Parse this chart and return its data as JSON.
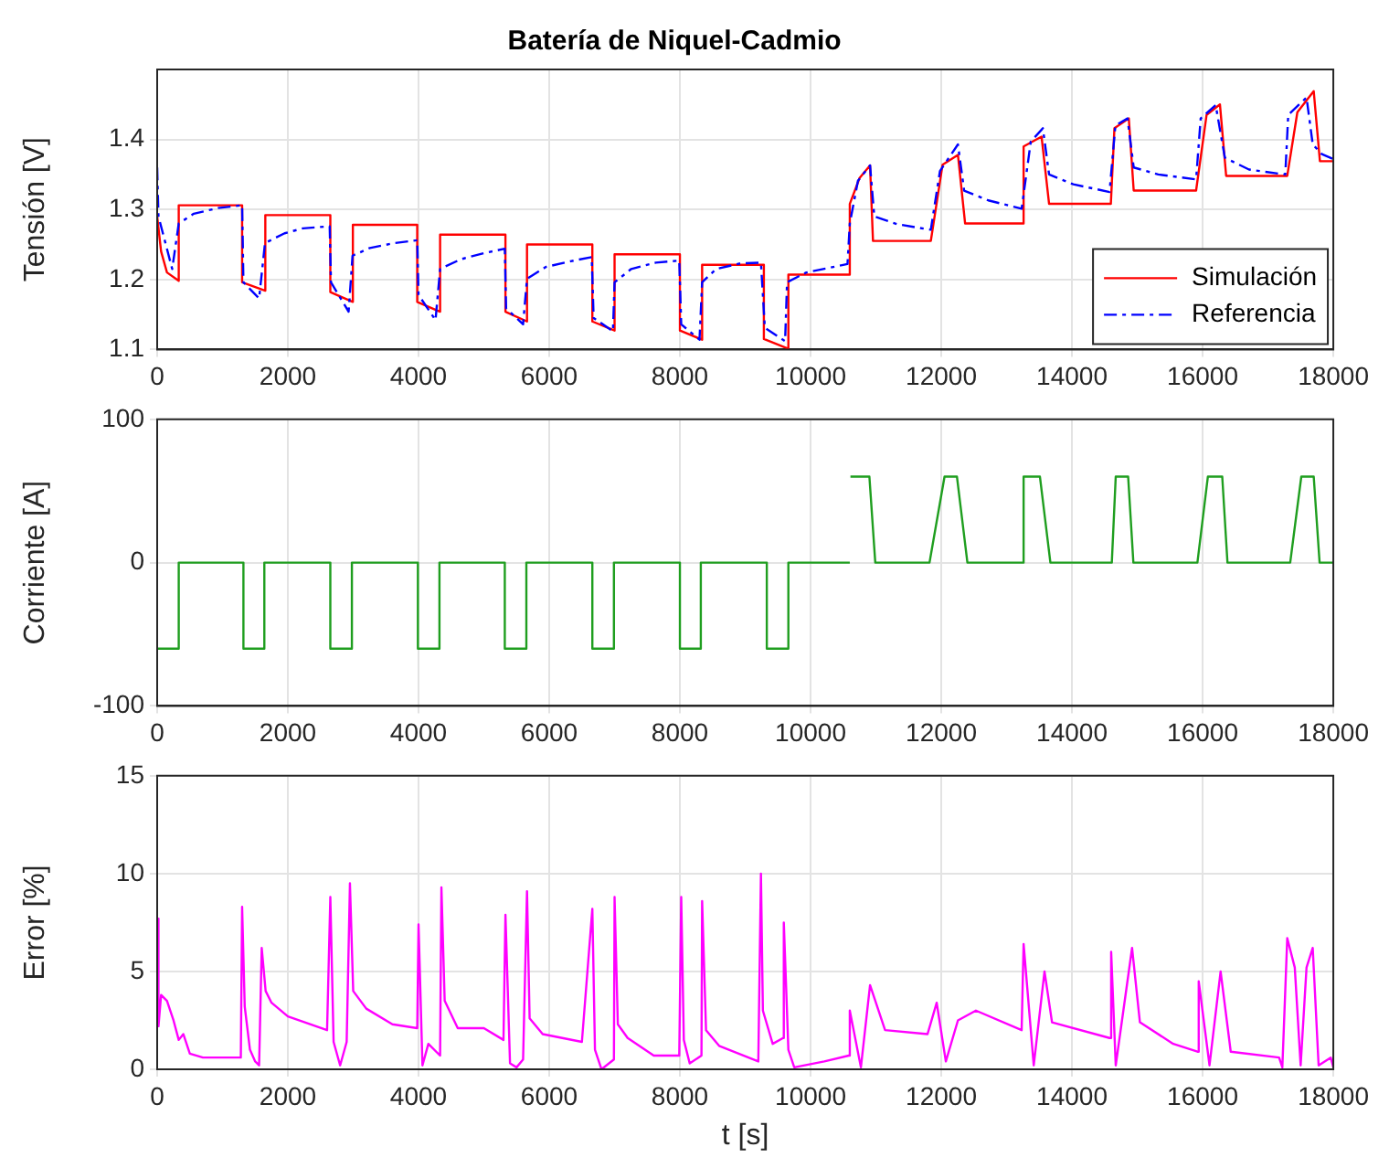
{
  "chart_data": [
    {
      "type": "line",
      "title": "Batería de Niquel-Cadmio",
      "ylabel": "Tensión [V]",
      "xlim": [
        0,
        18000
      ],
      "xticks": [
        0,
        2000,
        4000,
        6000,
        8000,
        10000,
        12000,
        14000,
        16000,
        18000
      ],
      "ylim": [
        1.1,
        1.5
      ],
      "yticks": [
        1.1,
        1.2,
        1.3,
        1.4
      ],
      "grid": true,
      "legend": "bottom right",
      "marker": "none",
      "series": [
        {
          "name": "Simulación",
          "color": "#ff0000",
          "line_style": "solid",
          "x": [
            0,
            60,
            150,
            330,
            330,
            1300,
            1300,
            1655,
            1655,
            2650,
            2650,
            2995,
            2995,
            3980,
            3980,
            4330,
            4330,
            5330,
            5330,
            5660,
            5660,
            6660,
            6660,
            7000,
            7000,
            8000,
            8000,
            8340,
            8340,
            9285,
            9285,
            9660,
            9660,
            10585,
            10600,
            10750,
            10910,
            10955,
            11840,
            12020,
            12255,
            12365,
            13260,
            13260,
            13535,
            13650,
            14595,
            14650,
            14870,
            14945,
            15900,
            16060,
            16265,
            16360,
            17295,
            17450,
            17700,
            17795,
            18000
          ],
          "values": [
            1.29,
            1.24,
            1.21,
            1.198,
            1.306,
            1.306,
            1.196,
            1.184,
            1.292,
            1.292,
            1.182,
            1.168,
            1.278,
            1.278,
            1.168,
            1.154,
            1.264,
            1.264,
            1.154,
            1.14,
            1.25,
            1.25,
            1.14,
            1.127,
            1.236,
            1.236,
            1.127,
            1.114,
            1.221,
            1.221,
            1.115,
            1.101,
            1.207,
            1.207,
            1.308,
            1.345,
            1.363,
            1.255,
            1.255,
            1.364,
            1.378,
            1.28,
            1.28,
            1.39,
            1.404,
            1.308,
            1.308,
            1.416,
            1.43,
            1.327,
            1.327,
            1.435,
            1.45,
            1.348,
            1.348,
            1.439,
            1.469,
            1.369,
            1.369
          ]
        },
        {
          "name": "Referencia",
          "color": "#0000ff",
          "line_style": "dashed",
          "x": [
            0,
            20,
            230,
            330,
            560,
            930,
            1300,
            1320,
            1560,
            1650,
            1950,
            2230,
            2640,
            2660,
            2930,
            2990,
            3255,
            3630,
            3980,
            4000,
            4260,
            4330,
            4650,
            5020,
            5320,
            5340,
            5600,
            5660,
            5950,
            6325,
            6650,
            6680,
            6975,
            7000,
            7255,
            7630,
            7990,
            8020,
            8300,
            8340,
            8555,
            8930,
            9240,
            9300,
            9610,
            9640,
            9935,
            10300,
            10565,
            10600,
            10725,
            10910,
            10975,
            11325,
            11840,
            11980,
            12255,
            12350,
            12720,
            13230,
            13370,
            13555,
            13650,
            14020,
            14575,
            14665,
            14850,
            14945,
            15320,
            15900,
            15970,
            16200,
            16340,
            16710,
            17265,
            17310,
            17590,
            17685,
            17825,
            18000
          ],
          "values": [
            1.36,
            1.29,
            1.215,
            1.28,
            1.294,
            1.302,
            1.306,
            1.196,
            1.173,
            1.252,
            1.266,
            1.273,
            1.276,
            1.196,
            1.154,
            1.234,
            1.245,
            1.252,
            1.256,
            1.178,
            1.142,
            1.215,
            1.229,
            1.238,
            1.244,
            1.159,
            1.136,
            1.201,
            1.218,
            1.226,
            1.232,
            1.145,
            1.126,
            1.196,
            1.215,
            1.224,
            1.227,
            1.136,
            1.114,
            1.196,
            1.215,
            1.223,
            1.224,
            1.131,
            1.112,
            1.196,
            1.21,
            1.217,
            1.222,
            1.28,
            1.341,
            1.363,
            1.29,
            1.279,
            1.271,
            1.355,
            1.393,
            1.327,
            1.313,
            1.301,
            1.397,
            1.416,
            1.35,
            1.336,
            1.325,
            1.42,
            1.43,
            1.36,
            1.35,
            1.343,
            1.43,
            1.449,
            1.374,
            1.357,
            1.35,
            1.435,
            1.46,
            1.393,
            1.379,
            1.372
          ]
        }
      ]
    },
    {
      "type": "line",
      "ylabel": "Corriente [A]",
      "xlim": [
        0,
        18000
      ],
      "xticks": [
        0,
        2000,
        4000,
        6000,
        8000,
        10000,
        12000,
        14000,
        16000,
        18000
      ],
      "ylim": [
        -100,
        100
      ],
      "yticks": [
        -100,
        0,
        100
      ],
      "grid": true,
      "marker": "none",
      "series": [
        {
          "color": "#1f9e1f",
          "line_style": "solid",
          "x": [
            0,
            330,
            330,
            1320,
            1320,
            1640,
            1640,
            2650,
            2650,
            2980,
            2980,
            3990,
            3990,
            4320,
            4320,
            5320,
            5320,
            5650,
            5650,
            6660,
            6660,
            6990,
            6990,
            8000,
            8000,
            8320,
            8320,
            9330,
            9330,
            9660,
            9660,
            10600,
            10605,
            10610,
            10900,
            10990,
            11820,
            12050,
            12240,
            12400,
            13260,
            13260,
            13510,
            13670,
            14610,
            14670,
            14860,
            14940,
            15920,
            16080,
            16300,
            16380,
            17340,
            17510,
            17700,
            17790,
            18000
          ],
          "values": [
            -60,
            -60,
            0,
            0,
            -60,
            -60,
            0,
            0,
            -60,
            -60,
            0,
            0,
            -60,
            -60,
            0,
            0,
            -60,
            -60,
            0,
            0,
            -60,
            -60,
            0,
            0,
            -60,
            -60,
            0,
            0,
            -60,
            -60,
            0,
            0,
            null,
            60,
            60,
            0,
            0,
            60,
            60,
            0,
            0,
            60,
            60,
            0,
            0,
            60,
            60,
            0,
            0,
            60,
            60,
            0,
            0,
            60,
            60,
            0,
            0
          ]
        }
      ]
    },
    {
      "type": "line",
      "xlabel": "t [s]",
      "ylabel": "Error [%]",
      "xlim": [
        0,
        18000
      ],
      "xticks": [
        0,
        2000,
        4000,
        6000,
        8000,
        10000,
        12000,
        14000,
        16000,
        18000
      ],
      "ylim": [
        0,
        15
      ],
      "yticks": [
        0,
        5,
        10,
        15
      ],
      "grid": true,
      "marker": "none",
      "series": [
        {
          "color": "#ff00ff",
          "line_style": "solid",
          "x": [
            0,
            20,
            60,
            150,
            250,
            330,
            400,
            500,
            700,
            1000,
            1280,
            1300,
            1340,
            1420,
            1500,
            1560,
            1600,
            1660,
            1750,
            2000,
            2600,
            2650,
            2700,
            2800,
            2900,
            2950,
            3000,
            3200,
            3600,
            3980,
            4000,
            4060,
            4150,
            4330,
            4350,
            4400,
            4600,
            5000,
            5300,
            5330,
            5400,
            5500,
            5600,
            5660,
            5700,
            5900,
            6500,
            6660,
            6700,
            6800,
            6990,
            7000,
            7050,
            7200,
            7600,
            7990,
            8020,
            8060,
            8150,
            8330,
            8340,
            8400,
            8600,
            9200,
            9240,
            9270,
            9420,
            9580,
            9590,
            9660,
            9750,
            10210,
            10585,
            10600,
            10770,
            10910,
            11140,
            11790,
            11930,
            12070,
            12255,
            12530,
            13230,
            13260,
            13415,
            13580,
            13695,
            14575,
            14600,
            14670,
            14920,
            15040,
            15550,
            15920,
            15940,
            16105,
            16275,
            16430,
            17170,
            17220,
            17295,
            17410,
            17500,
            17590,
            17685,
            17775,
            17960,
            18000
          ],
          "values": [
            7.7,
            2.2,
            3.8,
            3.5,
            2.5,
            1.5,
            1.8,
            0.8,
            0.6,
            0.6,
            0.6,
            8.3,
            3.2,
            1.0,
            0.4,
            0.2,
            6.2,
            4.0,
            3.4,
            2.7,
            2.0,
            8.8,
            1.4,
            0.2,
            1.4,
            9.5,
            4.0,
            3.1,
            2.3,
            2.1,
            7.4,
            0.2,
            1.3,
            0.7,
            9.3,
            3.5,
            2.1,
            2.1,
            1.5,
            7.9,
            0.3,
            0.1,
            0.5,
            9.1,
            2.6,
            1.8,
            1.4,
            8.2,
            1.0,
            0.0,
            0.5,
            8.8,
            2.3,
            1.6,
            0.7,
            0.7,
            8.8,
            1.5,
            0.3,
            0.7,
            8.6,
            2.0,
            1.2,
            0.4,
            10.0,
            3.0,
            1.3,
            1.6,
            7.5,
            1.0,
            0.1,
            0.4,
            0.7,
            3.0,
            0.1,
            4.3,
            2.0,
            1.8,
            3.4,
            0.4,
            2.5,
            3.0,
            2.0,
            6.4,
            0.2,
            5.0,
            2.4,
            1.6,
            6.0,
            0.2,
            6.2,
            2.4,
            1.3,
            0.9,
            4.5,
            0.2,
            5.0,
            0.9,
            0.6,
            0.1,
            6.7,
            5.2,
            0.2,
            5.2,
            6.2,
            0.2,
            0.6,
            0.1
          ]
        }
      ]
    }
  ]
}
